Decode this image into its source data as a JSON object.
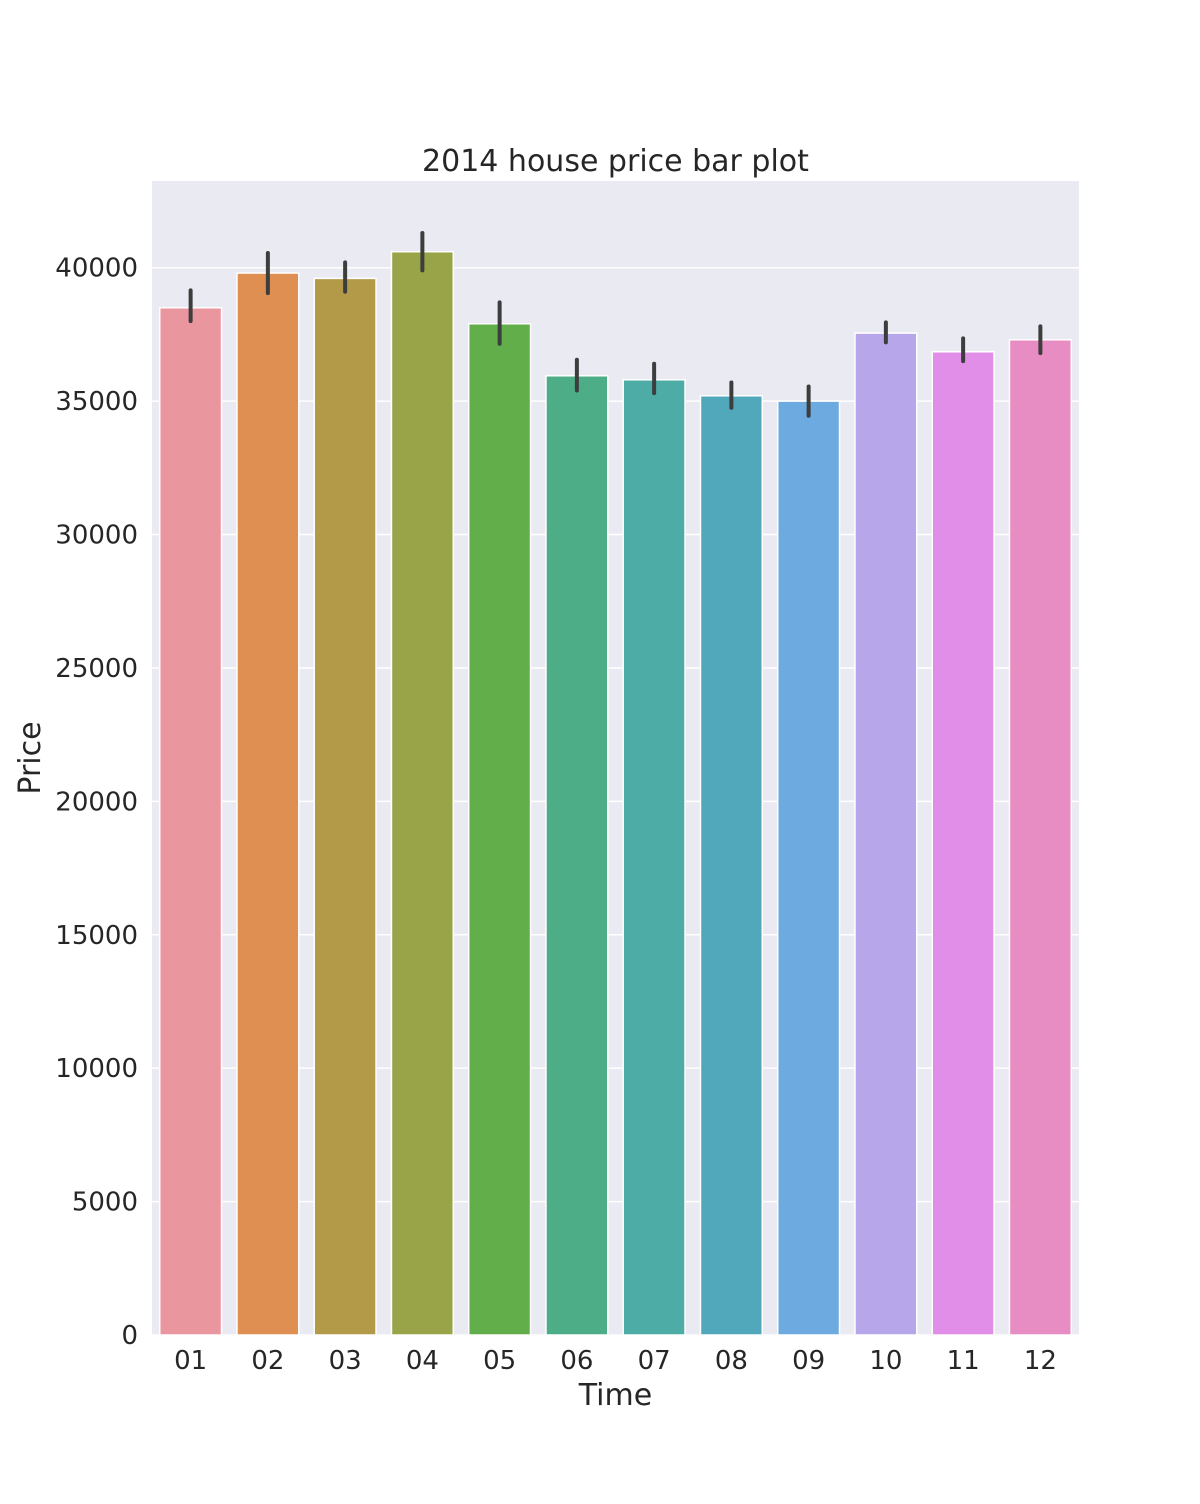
{
  "chart_data": {
    "type": "bar",
    "title": "2014 house price bar plot",
    "xlabel": "Time",
    "ylabel": "Price",
    "categories": [
      "01",
      "02",
      "03",
      "04",
      "05",
      "06",
      "07",
      "08",
      "09",
      "10",
      "11",
      "12"
    ],
    "values": [
      38500,
      39800,
      39600,
      40600,
      37900,
      35950,
      35800,
      35200,
      35000,
      37550,
      36850,
      37300
    ],
    "ci_low": [
      38000,
      39050,
      39100,
      39900,
      37150,
      35400,
      35300,
      34750,
      34450,
      37200,
      36500,
      36800
    ],
    "ci_high": [
      39150,
      40550,
      40200,
      41300,
      38700,
      36550,
      36400,
      35700,
      35550,
      37950,
      37350,
      37800
    ],
    "colors": [
      "#e9969f",
      "#e08f52",
      "#b39a48",
      "#98a447",
      "#62ae4b",
      "#4cad86",
      "#4dada6",
      "#51a8bb",
      "#6daadf",
      "#b7a7ea",
      "#e08ee7",
      "#e88dc3"
    ],
    "ylim": [
      0,
      43250
    ],
    "yticks": [
      0,
      5000,
      10000,
      15000,
      20000,
      25000,
      30000,
      35000,
      40000
    ],
    "grid": true,
    "background_color": "#eaeaf2",
    "grid_color": "#ffffff",
    "errorbar_color": "#3d3d3d"
  }
}
